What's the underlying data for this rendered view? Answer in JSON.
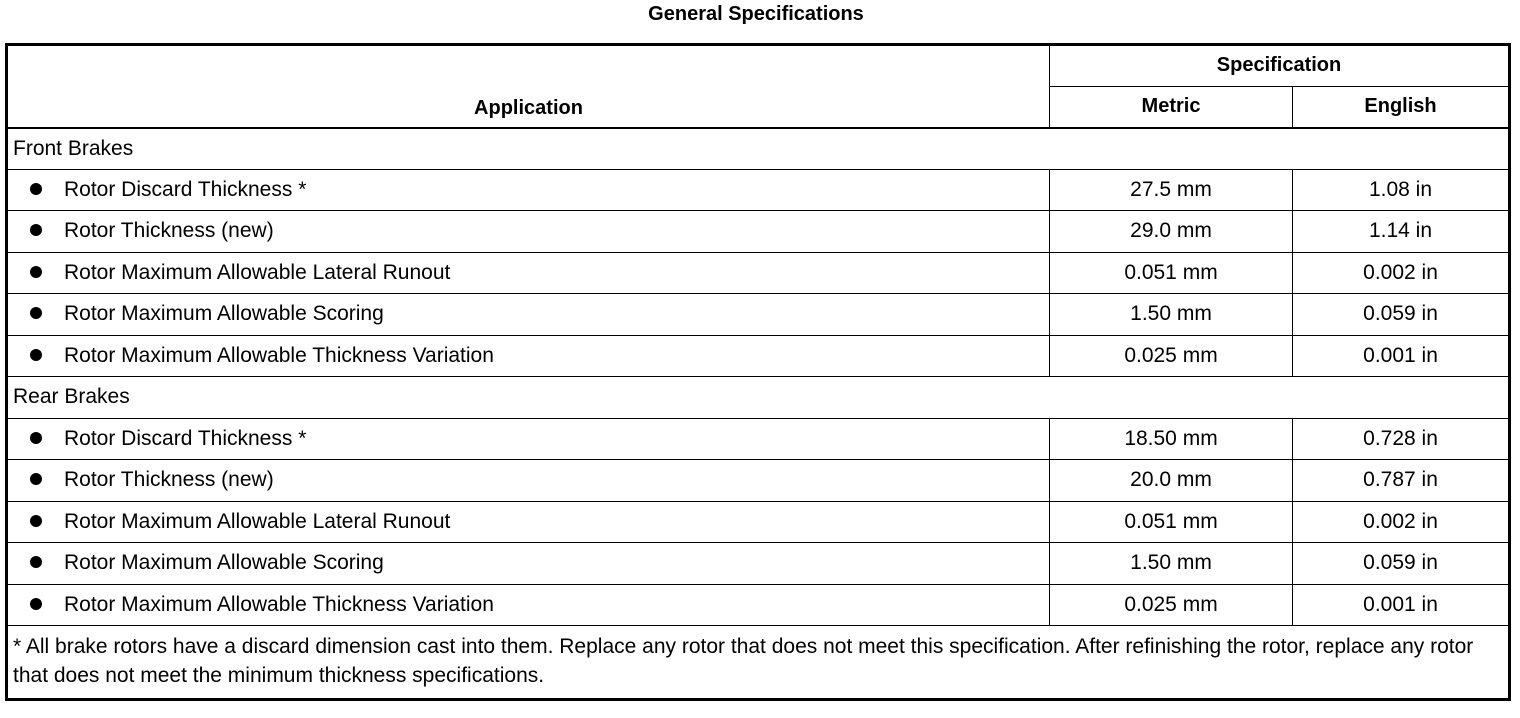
{
  "title": "General Specifications",
  "headers": {
    "application": "Application",
    "specification": "Specification",
    "metric": "Metric",
    "english": "English"
  },
  "sections": [
    {
      "name": "Front Brakes",
      "rows": [
        {
          "label": "Rotor Discard Thickness *",
          "metric": "27.5 mm",
          "english": "1.08 in"
        },
        {
          "label": "Rotor Thickness (new)",
          "metric": "29.0 mm",
          "english": "1.14 in"
        },
        {
          "label": "Rotor Maximum Allowable Lateral Runout",
          "metric": "0.051 mm",
          "english": "0.002 in"
        },
        {
          "label": "Rotor Maximum Allowable Scoring",
          "metric": "1.50 mm",
          "english": "0.059 in"
        },
        {
          "label": "Rotor Maximum Allowable Thickness Variation",
          "metric": "0.025 mm",
          "english": "0.001 in"
        }
      ]
    },
    {
      "name": "Rear Brakes",
      "rows": [
        {
          "label": "Rotor Discard Thickness *",
          "metric": "18.50 mm",
          "english": "0.728 in"
        },
        {
          "label": "Rotor Thickness (new)",
          "metric": "20.0 mm",
          "english": "0.787 in"
        },
        {
          "label": "Rotor Maximum Allowable Lateral Runout",
          "metric": "0.051 mm",
          "english": "0.002 in"
        },
        {
          "label": "Rotor Maximum Allowable Scoring",
          "metric": "1.50 mm",
          "english": "0.059 in"
        },
        {
          "label": "Rotor Maximum Allowable Thickness Variation",
          "metric": "0.025 mm",
          "english": "0.001 in"
        }
      ]
    }
  ],
  "footnote": "* All brake rotors have a discard dimension cast into them. Replace any rotor that does not meet this specification. After refinishing the rotor, replace any rotor that does not meet the minimum thickness specifications."
}
